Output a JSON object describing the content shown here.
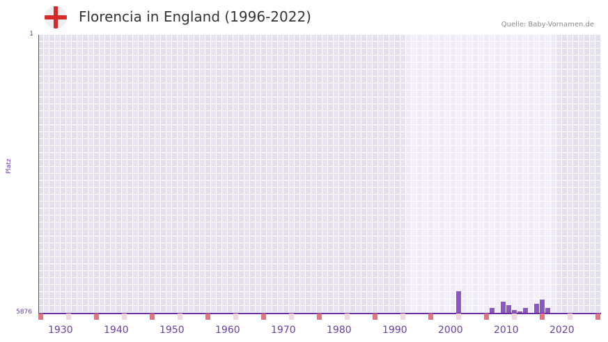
{
  "header": {
    "title": "Florencia in England (1996-2022)",
    "source": "Quelle: Baby-Vornamen.de",
    "flag_icon": "england-flag-icon"
  },
  "colors": {
    "bar": "#8e55c9",
    "axis": "#6a2aa0",
    "decade_marker": "#e57380",
    "half_decade_marker": "#f5d5de",
    "grid_dark": "#e3dfee",
    "grid_light": "#eeeaf9"
  },
  "chart_data": {
    "type": "bar",
    "title": "Florencia in England (1996-2022)",
    "xlabel": "",
    "ylabel": "Platz",
    "y_axis_inverted": true,
    "ylim": [
      1,
      5876
    ],
    "y_ticks": [
      "1",
      "5876"
    ],
    "x_ticks": [
      "1930",
      "1940",
      "1950",
      "1960",
      "1970",
      "1980",
      "1990",
      "2000",
      "2010",
      "2020"
    ],
    "x_range": [
      1928,
      2028
    ],
    "highlighted_range": [
      1994,
      2020
    ],
    "grid": true,
    "legend": null,
    "categories": [
      "2003",
      "2009",
      "2011",
      "2012",
      "2013",
      "2014",
      "2015",
      "2017",
      "2018",
      "2019"
    ],
    "values": [
      5421,
      5774,
      5641,
      5715,
      5818,
      5847,
      5774,
      5685,
      5597,
      5774
    ]
  }
}
